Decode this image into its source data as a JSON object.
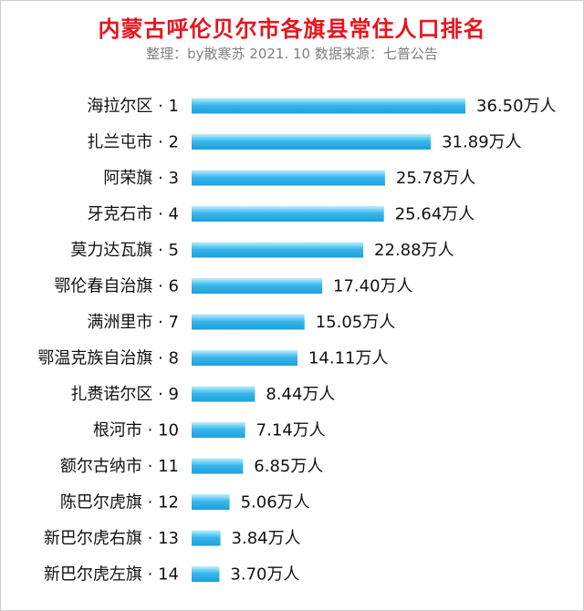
{
  "title": "内蒙古呼伦贝尔市各旗县常住人口排名",
  "subtitle": "整理：by散寒苏  2021. 10  数据来源：七普公告",
  "colors": {
    "title": "#e8141e",
    "bar_light": "#bfeeff",
    "bar_mid": "#39b8ee",
    "bar_dark": "#1e9fd8"
  },
  "chart_data": {
    "type": "bar",
    "orientation": "horizontal",
    "title": "内蒙古呼伦贝尔市各旗县常住人口排名",
    "subtitle": "整理：by散寒苏  2021. 10  数据来源：七普公告",
    "categories": [
      "海拉尔区 · 1",
      "扎兰屯市 · 2",
      "阿荣旗 · 3",
      "牙克石市 · 4",
      "莫力达瓦旗 · 5",
      "鄂伦春自治旗 · 6",
      "满洲里市 · 7",
      "鄂温克族自治旗 · 8",
      "扎赉诺尔区 · 9",
      "根河市 · 10",
      "额尔古纳市 · 11",
      "陈巴尔虎旗 · 12",
      "新巴尔虎右旗 · 13",
      "新巴尔虎左旗 · 14"
    ],
    "values": [
      36.5,
      31.89,
      25.78,
      25.64,
      22.88,
      17.4,
      15.05,
      14.11,
      8.44,
      7.14,
      6.85,
      5.06,
      3.84,
      3.7
    ],
    "value_labels": [
      "36.50万人",
      "31.89万人",
      "25.78万人",
      "25.64万人",
      "22.88万人",
      "17.40万人",
      "15.05万人",
      "14.11万人",
      "8.44万人",
      "7.14万人",
      "6.85万人",
      "5.06万人",
      "3.84万人",
      "3.70万人"
    ],
    "unit": "万人",
    "xlim": [
      0,
      36.5
    ],
    "grid": false,
    "legend": "none"
  }
}
